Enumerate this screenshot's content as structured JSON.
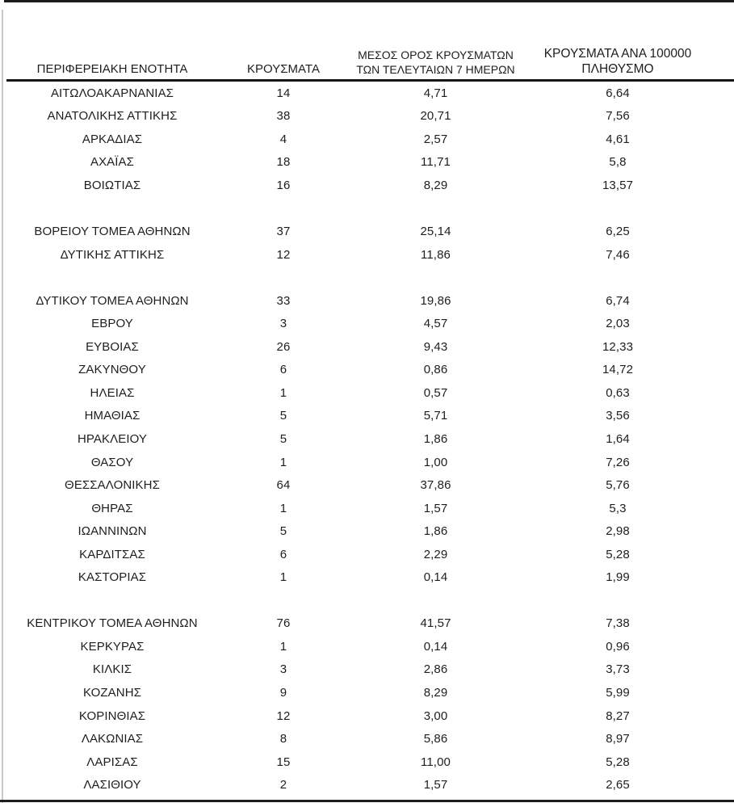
{
  "colors": {
    "background": "#ffffff",
    "text": "#1e1e1e",
    "rule": "#1c1c1c",
    "left_edge": "#c9c9c9"
  },
  "table": {
    "headers": {
      "region": "ΠΕΡΙΦΕΡΕΙΑΚΗ ΕΝΟΤΗΤΑ",
      "cases": "ΚΡΟΥΣΜΑΤΑ",
      "avg7": "ΜΕΣΟΣ ΟΡΟΣ ΚΡΟΥΣΜΑΤΩΝ\nΤΩΝ ΤΕΛΕΥΤΑΙΩΝ 7 ΗΜΕΡΩΝ",
      "per100k": "ΚΡΟΥΣΜΑΤΑ ΑΝΑ 100000\nΠΛΗΘΥΣΜΟ"
    },
    "rows": [
      {
        "region": "ΑΙΤΩΛΟΑΚΑΡΝΑΝΙΑΣ",
        "cases": "14",
        "avg7": "4,71",
        "per100k": "6,64"
      },
      {
        "region": "ΑΝΑΤΟΛΙΚΗΣ ΑΤΤΙΚΗΣ",
        "cases": "38",
        "avg7": "20,71",
        "per100k": "7,56"
      },
      {
        "region": "ΑΡΚΑΔΙΑΣ",
        "cases": "4",
        "avg7": "2,57",
        "per100k": "4,61"
      },
      {
        "region": "ΑΧΑΪΑΣ",
        "cases": "18",
        "avg7": "11,71",
        "per100k": "5,8"
      },
      {
        "region": "ΒΟΙΩΤΙΑΣ",
        "cases": "16",
        "avg7": "8,29",
        "per100k": "13,57"
      },
      {
        "region": "",
        "cases": "",
        "avg7": "",
        "per100k": ""
      },
      {
        "region": "ΒΟΡΕΙΟΥ ΤΟΜΕΑ ΑΘΗΝΩΝ",
        "cases": "37",
        "avg7": "25,14",
        "per100k": "6,25"
      },
      {
        "region": "ΔΥΤΙΚΗΣ ΑΤΤΙΚΗΣ",
        "cases": "12",
        "avg7": "11,86",
        "per100k": "7,46"
      },
      {
        "region": "",
        "cases": "",
        "avg7": "",
        "per100k": ""
      },
      {
        "region": "ΔΥΤΙΚΟΥ ΤΟΜΕΑ ΑΘΗΝΩΝ",
        "cases": "33",
        "avg7": "19,86",
        "per100k": "6,74"
      },
      {
        "region": "ΕΒΡΟΥ",
        "cases": "3",
        "avg7": "4,57",
        "per100k": "2,03"
      },
      {
        "region": "ΕΥΒΟΙΑΣ",
        "cases": "26",
        "avg7": "9,43",
        "per100k": "12,33"
      },
      {
        "region": "ΖΑΚΥΝΘΟΥ",
        "cases": "6",
        "avg7": "0,86",
        "per100k": "14,72"
      },
      {
        "region": "ΗΛΕΙΑΣ",
        "cases": "1",
        "avg7": "0,57",
        "per100k": "0,63"
      },
      {
        "region": "ΗΜΑΘΙΑΣ",
        "cases": "5",
        "avg7": "5,71",
        "per100k": "3,56"
      },
      {
        "region": "ΗΡΑΚΛΕΙΟΥ",
        "cases": "5",
        "avg7": "1,86",
        "per100k": "1,64"
      },
      {
        "region": "ΘΑΣΟΥ",
        "cases": "1",
        "avg7": "1,00",
        "per100k": "7,26"
      },
      {
        "region": "ΘΕΣΣΑΛΟΝΙΚΗΣ",
        "cases": "64",
        "avg7": "37,86",
        "per100k": "5,76"
      },
      {
        "region": "ΘΗΡΑΣ",
        "cases": "1",
        "avg7": "1,57",
        "per100k": "5,3"
      },
      {
        "region": "ΙΩΑΝΝΙΝΩΝ",
        "cases": "5",
        "avg7": "1,86",
        "per100k": "2,98"
      },
      {
        "region": "ΚΑΡΔΙΤΣΑΣ",
        "cases": "6",
        "avg7": "2,29",
        "per100k": "5,28"
      },
      {
        "region": "ΚΑΣΤΟΡΙΑΣ",
        "cases": "1",
        "avg7": "0,14",
        "per100k": "1,99"
      },
      {
        "region": "",
        "cases": "",
        "avg7": "",
        "per100k": ""
      },
      {
        "region": "ΚΕΝΤΡΙΚΟΥ ΤΟΜΕΑ ΑΘΗΝΩΝ",
        "cases": "76",
        "avg7": "41,57",
        "per100k": "7,38"
      },
      {
        "region": "ΚΕΡΚΥΡΑΣ",
        "cases": "1",
        "avg7": "0,14",
        "per100k": "0,96"
      },
      {
        "region": "ΚΙΛΚΙΣ",
        "cases": "3",
        "avg7": "2,86",
        "per100k": "3,73"
      },
      {
        "region": "ΚΟΖΑΝΗΣ",
        "cases": "9",
        "avg7": "8,29",
        "per100k": "5,99"
      },
      {
        "region": "ΚΟΡΙΝΘΙΑΣ",
        "cases": "12",
        "avg7": "3,00",
        "per100k": "8,27"
      },
      {
        "region": "ΛΑΚΩΝΙΑΣ",
        "cases": "8",
        "avg7": "5,86",
        "per100k": "8,97"
      },
      {
        "region": "ΛΑΡΙΣΑΣ",
        "cases": "15",
        "avg7": "11,00",
        "per100k": "5,28"
      },
      {
        "region": "ΛΑΣΙΘΙΟΥ",
        "cases": "2",
        "avg7": "1,57",
        "per100k": "2,65"
      }
    ]
  }
}
